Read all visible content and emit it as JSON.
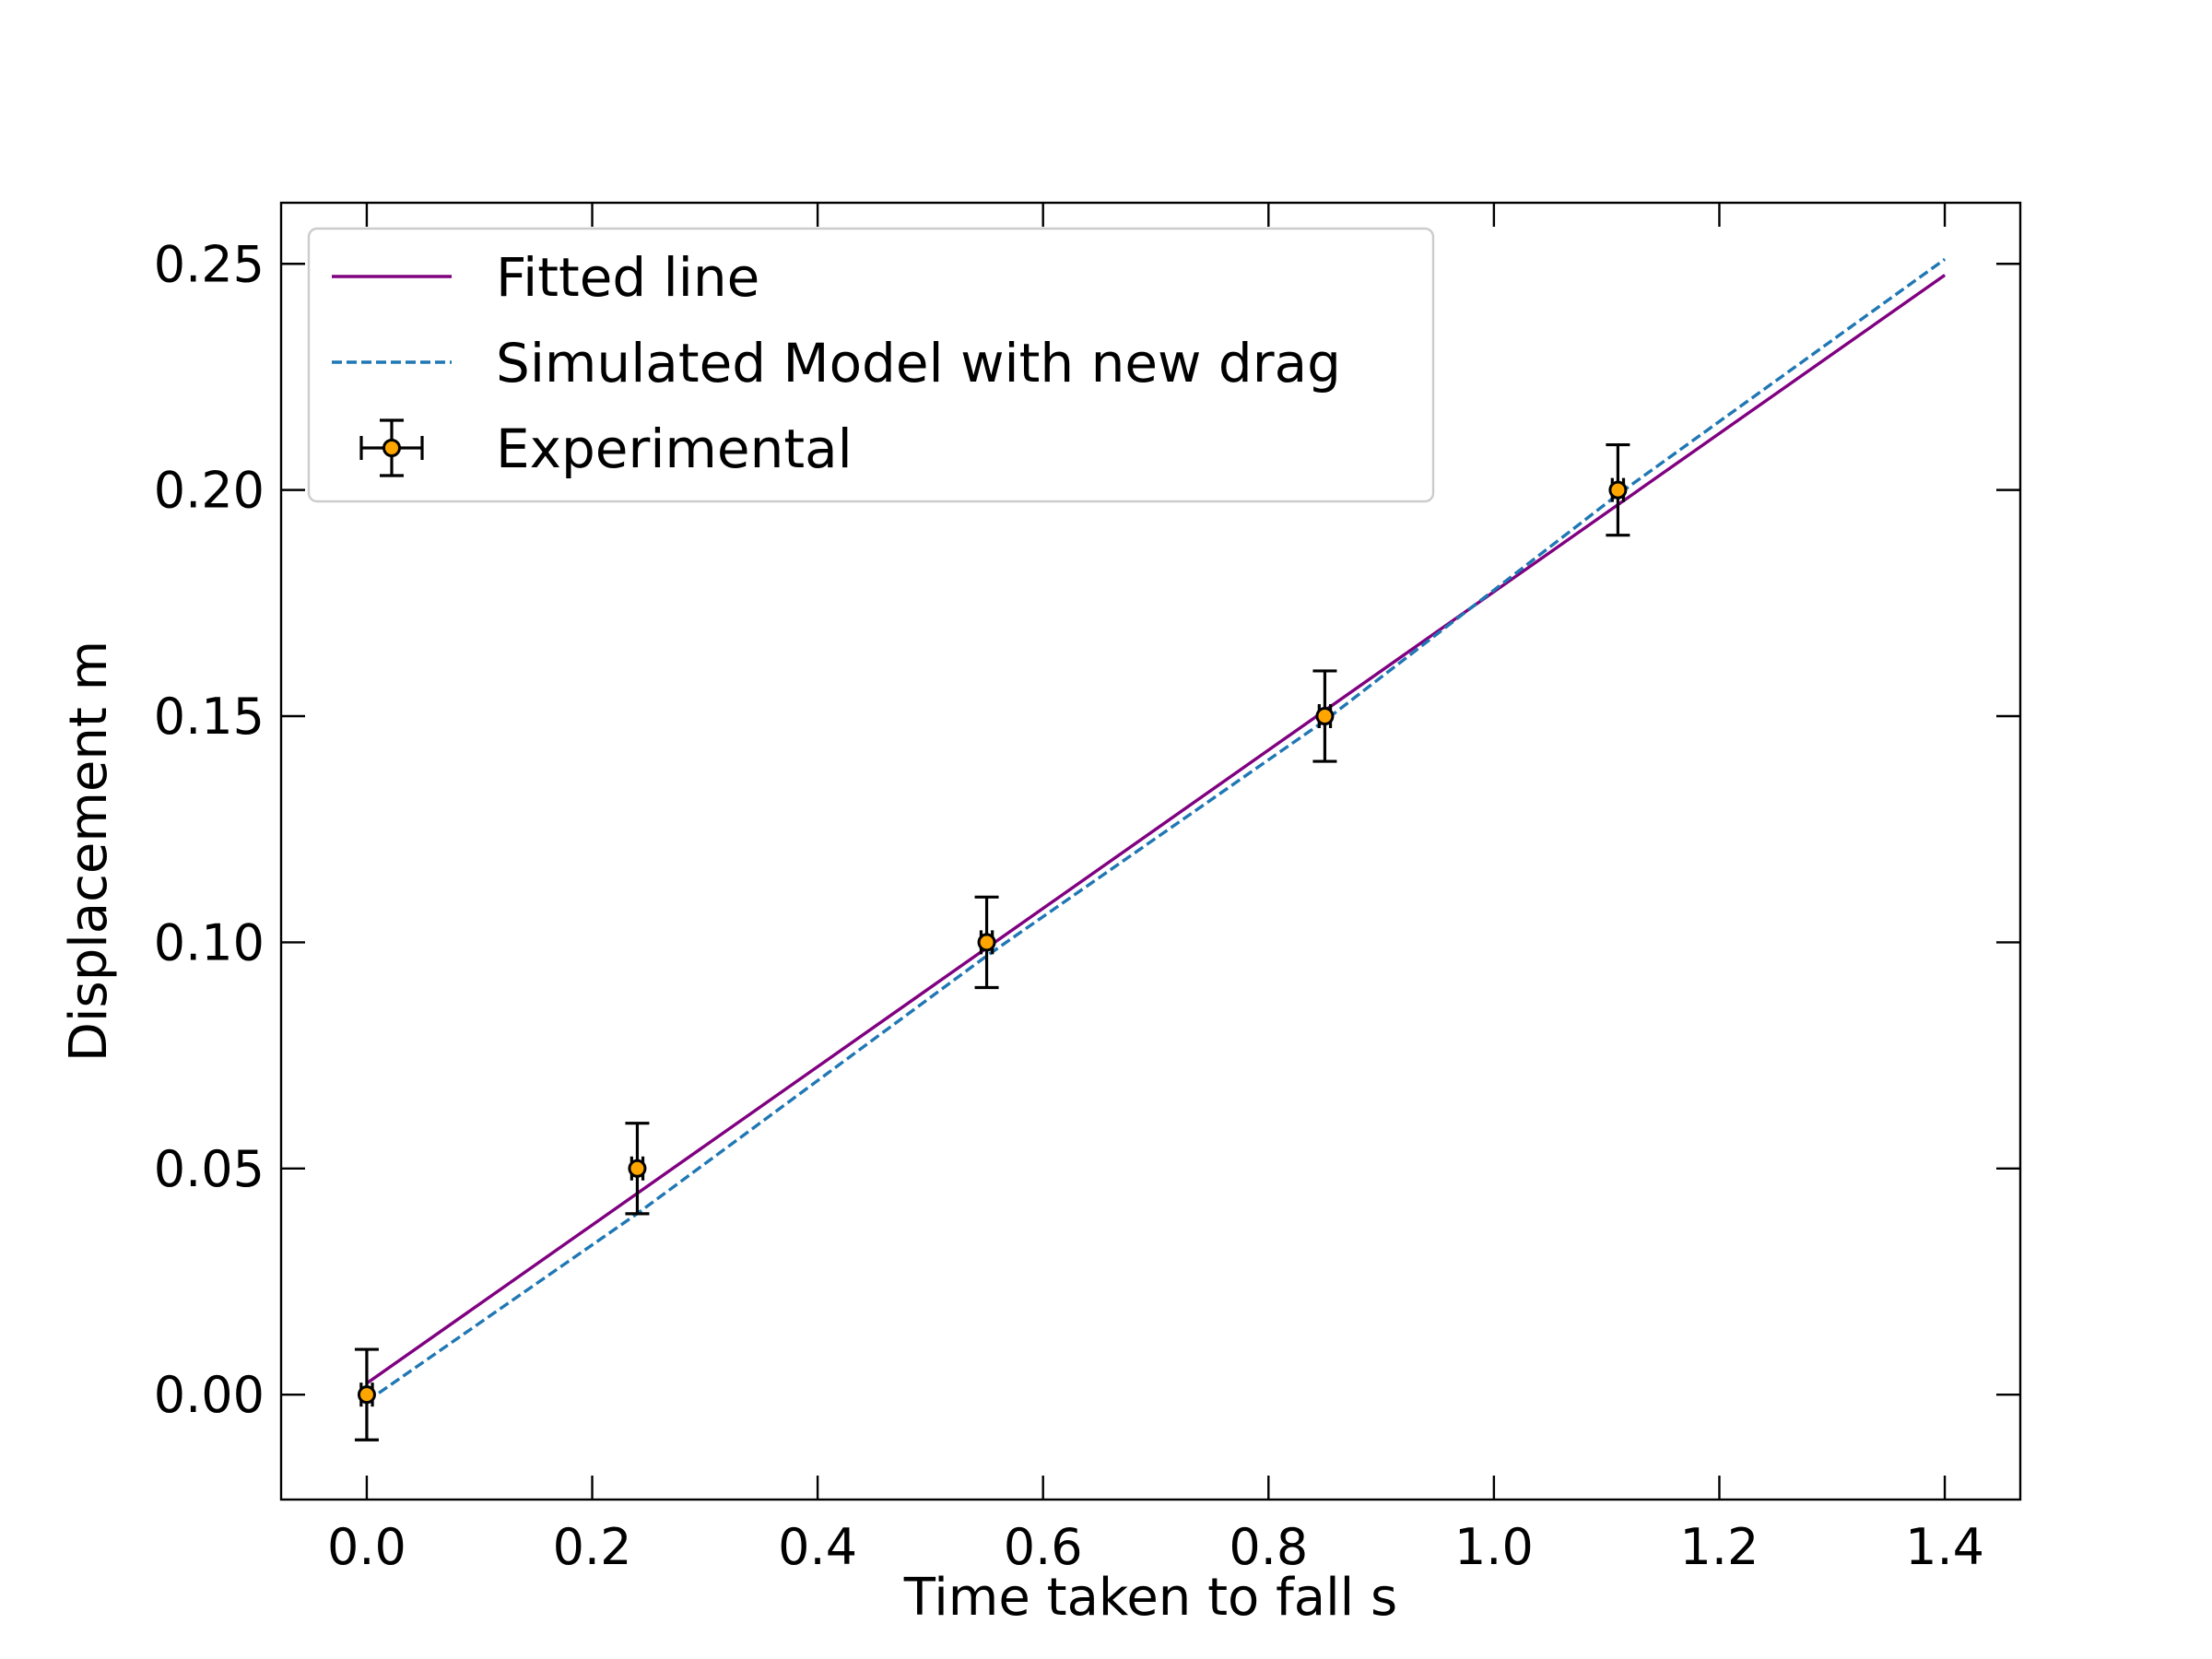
{
  "chart_data": {
    "type": "scatter",
    "title": "",
    "xlabel": "Time taken to fall s",
    "ylabel": "Displacement m",
    "xlim": [
      -0.076,
      1.467
    ],
    "ylim": [
      -0.0232,
      0.2635
    ],
    "xticks": [
      0.0,
      0.2,
      0.4,
      0.6,
      0.8,
      1.0,
      1.2,
      1.4
    ],
    "xtick_labels": [
      "0.0",
      "0.2",
      "0.4",
      "0.6",
      "0.8",
      "1.0",
      "1.2",
      "1.4"
    ],
    "yticks": [
      0.0,
      0.05,
      0.1,
      0.15,
      0.2,
      0.25
    ],
    "ytick_labels": [
      "0.00",
      "0.05",
      "0.10",
      "0.15",
      "0.20",
      "0.25"
    ],
    "grid": false,
    "legend_position": "upper-left",
    "series": [
      {
        "name": "Fitted line",
        "kind": "line",
        "style": "solid",
        "color": "#800080",
        "x": [
          0.0,
          1.4
        ],
        "y": [
          0.0025,
          0.2475
        ]
      },
      {
        "name": "Simulated Model with new drag",
        "kind": "line",
        "style": "dashed",
        "color": "#1f77b4",
        "x": [
          0.0,
          0.24,
          0.55,
          0.85,
          1.11,
          1.4
        ],
        "y": [
          -0.0015,
          0.04,
          0.097,
          0.149,
          0.199,
          0.251
        ]
      },
      {
        "name": "Experimental",
        "kind": "errorbar",
        "marker_color": "#ffa500",
        "edge_color": "#000000",
        "x": [
          0.0,
          0.24,
          0.55,
          0.85,
          1.11
        ],
        "y": [
          0.0,
          0.05,
          0.1,
          0.15,
          0.2
        ],
        "yerr": [
          0.01,
          0.01,
          0.01,
          0.01,
          0.01
        ],
        "xerr": [
          0.005,
          0.005,
          0.005,
          0.005,
          0.005
        ]
      }
    ]
  }
}
